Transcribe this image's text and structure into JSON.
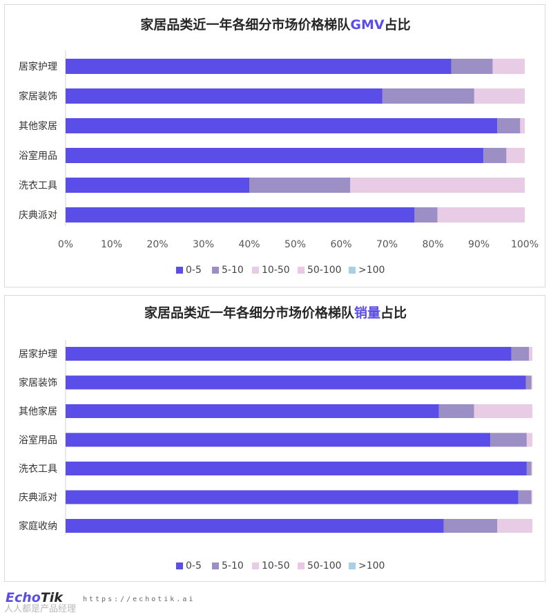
{
  "colors": {
    "0-5": "#5b4de8",
    "5-10": "#9c8fc6",
    "10-50": "#e8cce6",
    "50-100": "#ecc8e6",
    ">100": "#a9cfe6"
  },
  "legend": [
    "0-5",
    "5-10",
    "10-50",
    "50-100",
    ">100"
  ],
  "chart_data": [
    {
      "type": "bar",
      "orientation": "horizontal",
      "stacked": "percent",
      "title_prefix": "家居品类近一年各细分市场价格梯队",
      "title_highlight": "GMV",
      "title_suffix": "占比",
      "categories": [
        "居家护理",
        "家居装饰",
        "其他家居",
        "浴室用品",
        "洗衣工具",
        "庆典派对"
      ],
      "xlim": [
        0,
        100
      ],
      "x_ticks": [
        "0%",
        "10%",
        "20%",
        "30%",
        "40%",
        "50%",
        "60%",
        "70%",
        "80%",
        "90%",
        "100%"
      ],
      "legend_position": "bottom",
      "series": [
        {
          "name": "0-5",
          "values": [
            84,
            69,
            94,
            91,
            40,
            76
          ]
        },
        {
          "name": "5-10",
          "values": [
            9,
            20,
            5,
            5,
            22,
            5
          ]
        },
        {
          "name": "10-50",
          "values": [
            7,
            11,
            1,
            4,
            38,
            19
          ]
        },
        {
          "name": "50-100",
          "values": [
            0,
            0,
            0,
            0,
            0,
            0
          ]
        },
        {
          "name": ">100",
          "values": [
            0,
            0,
            0,
            0,
            0,
            0
          ]
        }
      ]
    },
    {
      "type": "bar",
      "orientation": "horizontal",
      "stacked": "percent",
      "title_prefix": "家居品类近一年各细分市场价格梯队",
      "title_highlight": "销量",
      "title_suffix": "占比",
      "categories": [
        "居家护理",
        "家居装饰",
        "其他家居",
        "浴室用品",
        "洗衣工具",
        "庆典派对",
        "家庭收纳"
      ],
      "xlim": [
        0,
        100
      ],
      "legend_position": "bottom",
      "series": [
        {
          "name": "0-5",
          "values": [
            95.5,
            98.6,
            80,
            91,
            98.8,
            97,
            81
          ]
        },
        {
          "name": "5-10",
          "values": [
            3.8,
            1.2,
            7.5,
            7.8,
            1.0,
            2.8,
            11.5
          ]
        },
        {
          "name": "10-50",
          "values": [
            0.7,
            0.2,
            12.5,
            1.2,
            0.2,
            0.2,
            7.5
          ]
        },
        {
          "name": "50-100",
          "values": [
            0,
            0,
            0,
            0,
            0,
            0,
            0
          ]
        },
        {
          "name": ">100",
          "values": [
            0,
            0,
            0,
            0,
            0,
            0,
            0
          ]
        }
      ]
    }
  ],
  "footer": {
    "logo_brand": "Echo",
    "logo_rest": "Tik",
    "url": "https://echotik.ai",
    "watermark": "人人都是产品经理"
  }
}
